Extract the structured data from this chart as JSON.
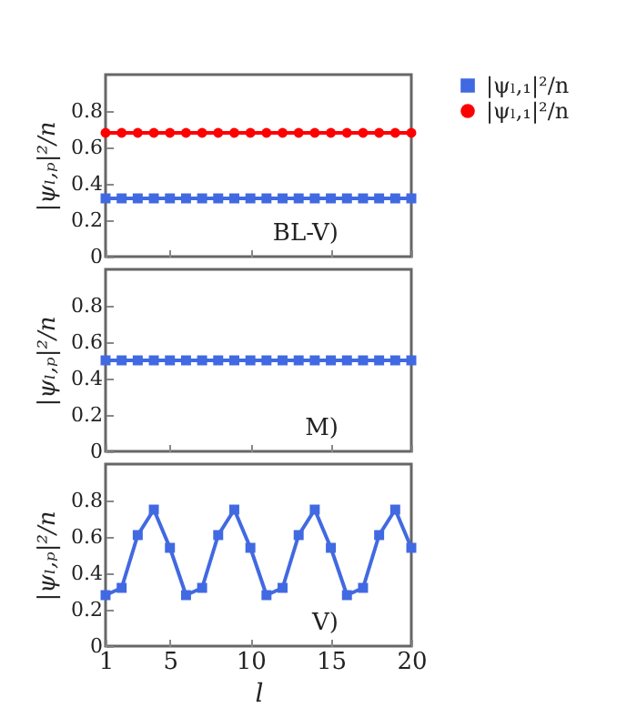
{
  "chart_data": [
    {
      "type": "line",
      "x": [
        1,
        2,
        3,
        4,
        5,
        6,
        7,
        8,
        9,
        10,
        11,
        12,
        13,
        14,
        15,
        16,
        17,
        18,
        19,
        20
      ],
      "ylabel": "|ψₗ,ₚ|²/n",
      "xlim": [
        1,
        20
      ],
      "xticks": [
        1,
        5,
        10,
        15,
        20
      ],
      "ylim": [
        0,
        1
      ],
      "yticks": [
        0,
        0.2,
        0.4,
        0.6,
        0.8
      ],
      "tick_labels": "y",
      "legend": "top right",
      "annotations": [
        "BL-V)"
      ],
      "series": [
        {
          "name": "|ψₗ,₁|²/n",
          "color": "#4169e1",
          "marker": "square",
          "values": [
            0.32,
            0.32,
            0.32,
            0.32,
            0.32,
            0.32,
            0.32,
            0.32,
            0.32,
            0.32,
            0.32,
            0.32,
            0.32,
            0.32,
            0.32,
            0.32,
            0.32,
            0.32,
            0.32,
            0.32
          ]
        },
        {
          "name": "|ψₗ,₁|²/n",
          "color": "#ff0000",
          "marker": "circle",
          "values": [
            0.68,
            0.68,
            0.68,
            0.68,
            0.68,
            0.68,
            0.68,
            0.68,
            0.68,
            0.68,
            0.68,
            0.68,
            0.68,
            0.68,
            0.68,
            0.68,
            0.68,
            0.68,
            0.68,
            0.68
          ]
        }
      ]
    },
    {
      "type": "line",
      "x": [
        1,
        2,
        3,
        4,
        5,
        6,
        7,
        8,
        9,
        10,
        11,
        12,
        13,
        14,
        15,
        16,
        17,
        18,
        19,
        20
      ],
      "ylabel": "|ψₗ,ₚ|²/n",
      "xlim": [
        1,
        20
      ],
      "xticks": [
        1,
        5,
        10,
        15,
        20
      ],
      "ylim": [
        0,
        1
      ],
      "yticks": [
        0,
        0.2,
        0.4,
        0.6,
        0.8
      ],
      "tick_labels": "y",
      "annotations": [
        "M)"
      ],
      "series": [
        {
          "color": "#4169e1",
          "marker": "square",
          "values": [
            0.5,
            0.5,
            0.5,
            0.5,
            0.5,
            0.5,
            0.5,
            0.5,
            0.5,
            0.5,
            0.5,
            0.5,
            0.5,
            0.5,
            0.5,
            0.5,
            0.5,
            0.5,
            0.5,
            0.5
          ]
        }
      ]
    },
    {
      "type": "line",
      "x": [
        1,
        2,
        3,
        4,
        5,
        6,
        7,
        8,
        9,
        10,
        11,
        12,
        13,
        14,
        15,
        16,
        17,
        18,
        19,
        20
      ],
      "xlabel": "l",
      "ylabel": "|ψₗ,ₚ|²/n",
      "xlim": [
        1,
        20
      ],
      "xticks": [
        1,
        5,
        10,
        15,
        20
      ],
      "ylim": [
        0,
        1
      ],
      "yticks": [
        0,
        0.2,
        0.4,
        0.6,
        0.8
      ],
      "annotations": [
        "V)"
      ],
      "series": [
        {
          "color": "#4169e1",
          "marker": "square",
          "values": [
            0.28,
            0.32,
            0.61,
            0.75,
            0.54,
            0.28,
            0.32,
            0.61,
            0.75,
            0.54,
            0.28,
            0.32,
            0.61,
            0.75,
            0.54,
            0.28,
            0.32,
            0.61,
            0.75,
            0.54
          ]
        }
      ]
    }
  ]
}
